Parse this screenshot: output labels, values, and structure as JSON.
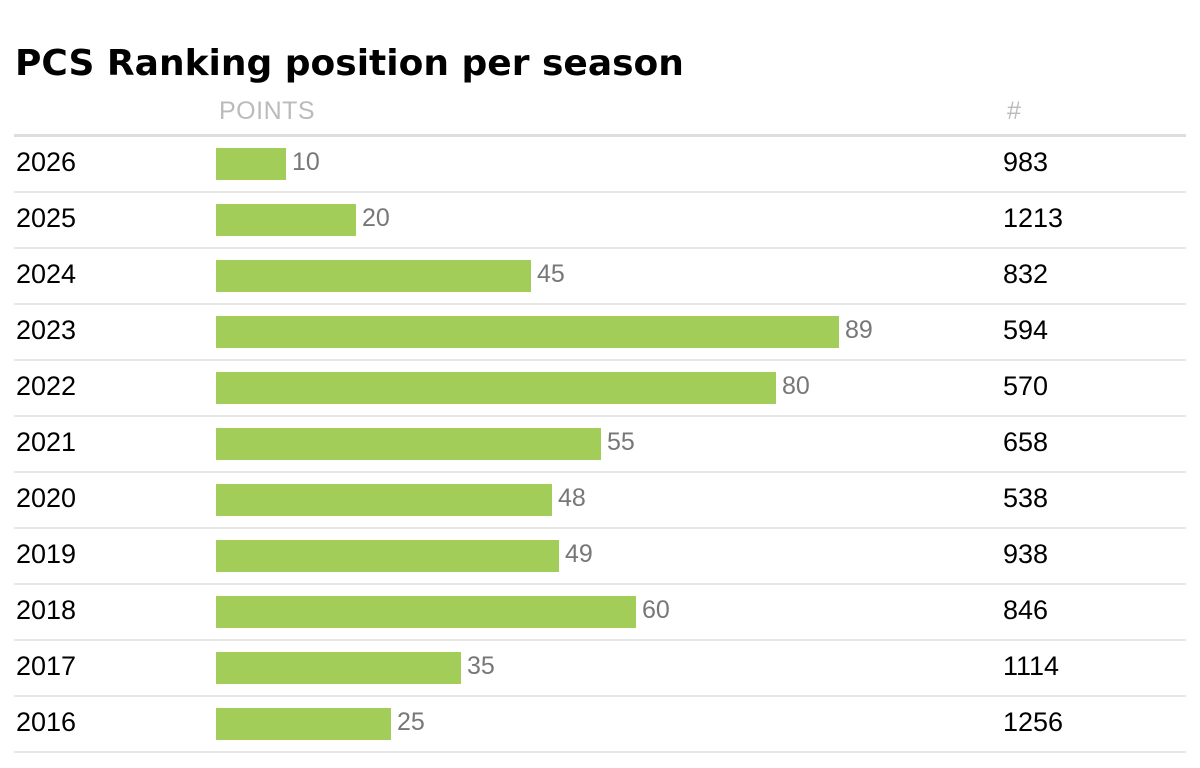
{
  "title": "PCS Ranking position per season",
  "columns": {
    "points": "POINTS",
    "rank": "#"
  },
  "colors": {
    "bar": "#a3cd59",
    "label": "#777777",
    "header": "#bbbbbb"
  },
  "chart_data": {
    "type": "bar",
    "orientation": "horizontal",
    "title": "PCS Ranking position per season",
    "xlabel": "POINTS",
    "ylabel": "",
    "categories": [
      "2026",
      "2025",
      "2024",
      "2023",
      "2022",
      "2021",
      "2020",
      "2019",
      "2018",
      "2017",
      "2016"
    ],
    "values": [
      10,
      20,
      45,
      89,
      80,
      55,
      48,
      49,
      60,
      35,
      25
    ],
    "ranks": [
      "983",
      "1213",
      "832",
      "594",
      "570",
      "658",
      "538",
      "938",
      "846",
      "1114",
      "1256"
    ],
    "xlim": [
      0,
      100
    ],
    "grid": false,
    "legend": "none"
  }
}
